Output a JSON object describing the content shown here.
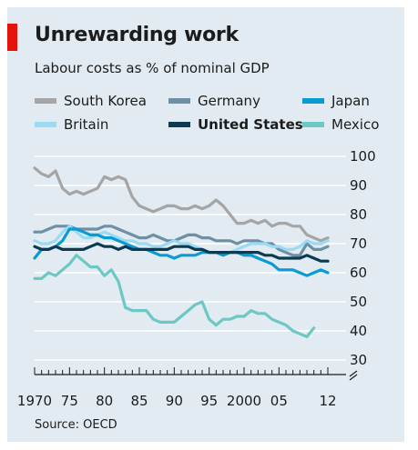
{
  "title": "Unrewarding work",
  "subtitle": "Labour costs as % of nominal GDP",
  "source": "Source: OECD",
  "chart_data": {
    "type": "line",
    "title": "Unrewarding work",
    "subtitle": "Labour costs as % of nominal GDP",
    "xlabel": "",
    "ylabel": "",
    "xlim": [
      1970,
      2012
    ],
    "ylim": [
      25,
      100
    ],
    "axis_break": true,
    "grid": true,
    "y_axis_side": "right",
    "legend_position": "top",
    "x_ticks": [
      1970,
      1975,
      1980,
      1985,
      1990,
      1995,
      2000,
      2005,
      2012
    ],
    "x_tick_labels": [
      "1970",
      "75",
      "80",
      "85",
      "90",
      "95",
      "2000",
      "05",
      "12"
    ],
    "y_ticks": [
      30,
      40,
      50,
      60,
      70,
      80,
      90,
      100
    ],
    "y_tick_labels": [
      "30",
      "40",
      "50",
      "60",
      "70",
      "80",
      "90",
      "100"
    ],
    "series": [
      {
        "name": "South Korea",
        "color": "#a5a5a5",
        "x": [
          1970,
          1971,
          1972,
          1973,
          1974,
          1975,
          1976,
          1977,
          1978,
          1979,
          1980,
          1981,
          1982,
          1983,
          1984,
          1985,
          1986,
          1987,
          1988,
          1989,
          1990,
          1991,
          1992,
          1993,
          1994,
          1995,
          1996,
          1997,
          1998,
          1999,
          2000,
          2001,
          2002,
          2003,
          2004,
          2005,
          2006,
          2007,
          2008,
          2009,
          2010,
          2011,
          2012
        ],
        "values": [
          96,
          94,
          93,
          95,
          89,
          87,
          88,
          87,
          88,
          89,
          93,
          92,
          93,
          92,
          86,
          83,
          82,
          81,
          82,
          83,
          83,
          82,
          82,
          83,
          82,
          83,
          85,
          83,
          80,
          77,
          77,
          78,
          77,
          78,
          76,
          77,
          77,
          76,
          76,
          73,
          72,
          71,
          72
        ]
      },
      {
        "name": "Germany",
        "color": "#6e8fa6",
        "x": [
          1970,
          1971,
          1972,
          1973,
          1974,
          1975,
          1976,
          1977,
          1978,
          1979,
          1980,
          1981,
          1982,
          1983,
          1984,
          1985,
          1986,
          1987,
          1988,
          1989,
          1990,
          1991,
          1992,
          1993,
          1994,
          1995,
          1996,
          1997,
          1998,
          1999,
          2000,
          2001,
          2002,
          2003,
          2004,
          2005,
          2006,
          2007,
          2008,
          2009,
          2010,
          2011,
          2012
        ],
        "values": [
          74,
          74,
          75,
          76,
          76,
          76,
          75,
          75,
          75,
          75,
          76,
          76,
          75,
          74,
          73,
          72,
          72,
          73,
          72,
          71,
          71,
          72,
          73,
          73,
          72,
          72,
          71,
          71,
          71,
          70,
          71,
          71,
          71,
          70,
          70,
          68,
          67,
          66,
          66,
          70,
          68,
          68,
          69
        ]
      },
      {
        "name": "Japan",
        "color": "#0a9bd4",
        "x": [
          1970,
          1971,
          1972,
          1973,
          1974,
          1975,
          1976,
          1977,
          1978,
          1979,
          1980,
          1981,
          1982,
          1983,
          1984,
          1985,
          1986,
          1987,
          1988,
          1989,
          1990,
          1991,
          1992,
          1993,
          1994,
          1995,
          1996,
          1997,
          1998,
          1999,
          2000,
          2001,
          2002,
          2003,
          2004,
          2005,
          2006,
          2007,
          2008,
          2009,
          2010,
          2011,
          2012
        ],
        "values": [
          65,
          68,
          68,
          69,
          71,
          75,
          75,
          74,
          73,
          73,
          72,
          72,
          71,
          70,
          69,
          68,
          68,
          67,
          66,
          66,
          65,
          66,
          66,
          66,
          67,
          67,
          67,
          66,
          67,
          67,
          66,
          66,
          65,
          64,
          63,
          61,
          61,
          61,
          60,
          59,
          60,
          61,
          60
        ]
      },
      {
        "name": "Britain",
        "color": "#9bdaf3",
        "x": [
          1970,
          1971,
          1972,
          1973,
          1974,
          1975,
          1976,
          1977,
          1978,
          1979,
          1980,
          1981,
          1982,
          1983,
          1984,
          1985,
          1986,
          1987,
          1988,
          1989,
          1990,
          1991,
          1992,
          1993,
          1994,
          1995,
          1996,
          1997,
          1998,
          1999,
          2000,
          2001,
          2002,
          2003,
          2004,
          2005,
          2006,
          2007,
          2008,
          2009,
          2010,
          2011,
          2012
        ],
        "values": [
          71,
          70,
          70,
          71,
          74,
          76,
          74,
          72,
          72,
          73,
          74,
          73,
          72,
          71,
          71,
          70,
          70,
          69,
          69,
          70,
          71,
          70,
          70,
          69,
          68,
          67,
          67,
          66,
          67,
          68,
          69,
          70,
          70,
          70,
          69,
          69,
          68,
          68,
          69,
          71,
          70,
          70,
          71
        ]
      },
      {
        "name": "United States",
        "color": "#0c3a52",
        "bold": true,
        "x": [
          1970,
          1971,
          1972,
          1973,
          1974,
          1975,
          1976,
          1977,
          1978,
          1979,
          1980,
          1981,
          1982,
          1983,
          1984,
          1985,
          1986,
          1987,
          1988,
          1989,
          1990,
          1991,
          1992,
          1993,
          1994,
          1995,
          1996,
          1997,
          1998,
          1999,
          2000,
          2001,
          2002,
          2003,
          2004,
          2005,
          2006,
          2007,
          2008,
          2009,
          2010,
          2011,
          2012
        ],
        "values": [
          69,
          68,
          68,
          69,
          68,
          68,
          68,
          68,
          69,
          70,
          69,
          69,
          68,
          69,
          68,
          68,
          68,
          68,
          68,
          68,
          69,
          69,
          69,
          68,
          68,
          67,
          67,
          67,
          67,
          67,
          67,
          67,
          67,
          66,
          66,
          65,
          65,
          65,
          65,
          66,
          65,
          64,
          64
        ]
      },
      {
        "name": "Mexico",
        "color": "#6dc8c4",
        "x": [
          1970,
          1971,
          1972,
          1973,
          1974,
          1975,
          1976,
          1977,
          1978,
          1979,
          1980,
          1981,
          1982,
          1983,
          1984,
          1985,
          1986,
          1987,
          1988,
          1989,
          1990,
          1991,
          1992,
          1993,
          1994,
          1995,
          1996,
          1997,
          1998,
          1999,
          2000,
          2001,
          2002,
          2003,
          2004,
          2005,
          2006,
          2007,
          2008,
          2009,
          2010
        ],
        "values": [
          58,
          58,
          60,
          59,
          61,
          63,
          66,
          64,
          62,
          62,
          59,
          61,
          57,
          48,
          47,
          47,
          47,
          44,
          43,
          43,
          43,
          45,
          47,
          49,
          50,
          44,
          42,
          44,
          44,
          45,
          45,
          47,
          46,
          46,
          44,
          43,
          42,
          40,
          39,
          38,
          41
        ]
      }
    ]
  },
  "legend": [
    {
      "label": "South Korea",
      "color": "#a5a5a5",
      "bold": false
    },
    {
      "label": "Germany",
      "color": "#6e8fa6",
      "bold": false
    },
    {
      "label": "Japan",
      "color": "#0a9bd4",
      "bold": false
    },
    {
      "label": "Britain",
      "color": "#9bdaf3",
      "bold": false
    },
    {
      "label": "United States",
      "color": "#0c3a52",
      "bold": true
    },
    {
      "label": "Mexico",
      "color": "#6dc8c4",
      "bold": false
    }
  ],
  "colors": {
    "panel": "#e1ebf1",
    "brand_red": "#e3120b",
    "grid": "#ffffff",
    "text": "#1c1c1c"
  }
}
